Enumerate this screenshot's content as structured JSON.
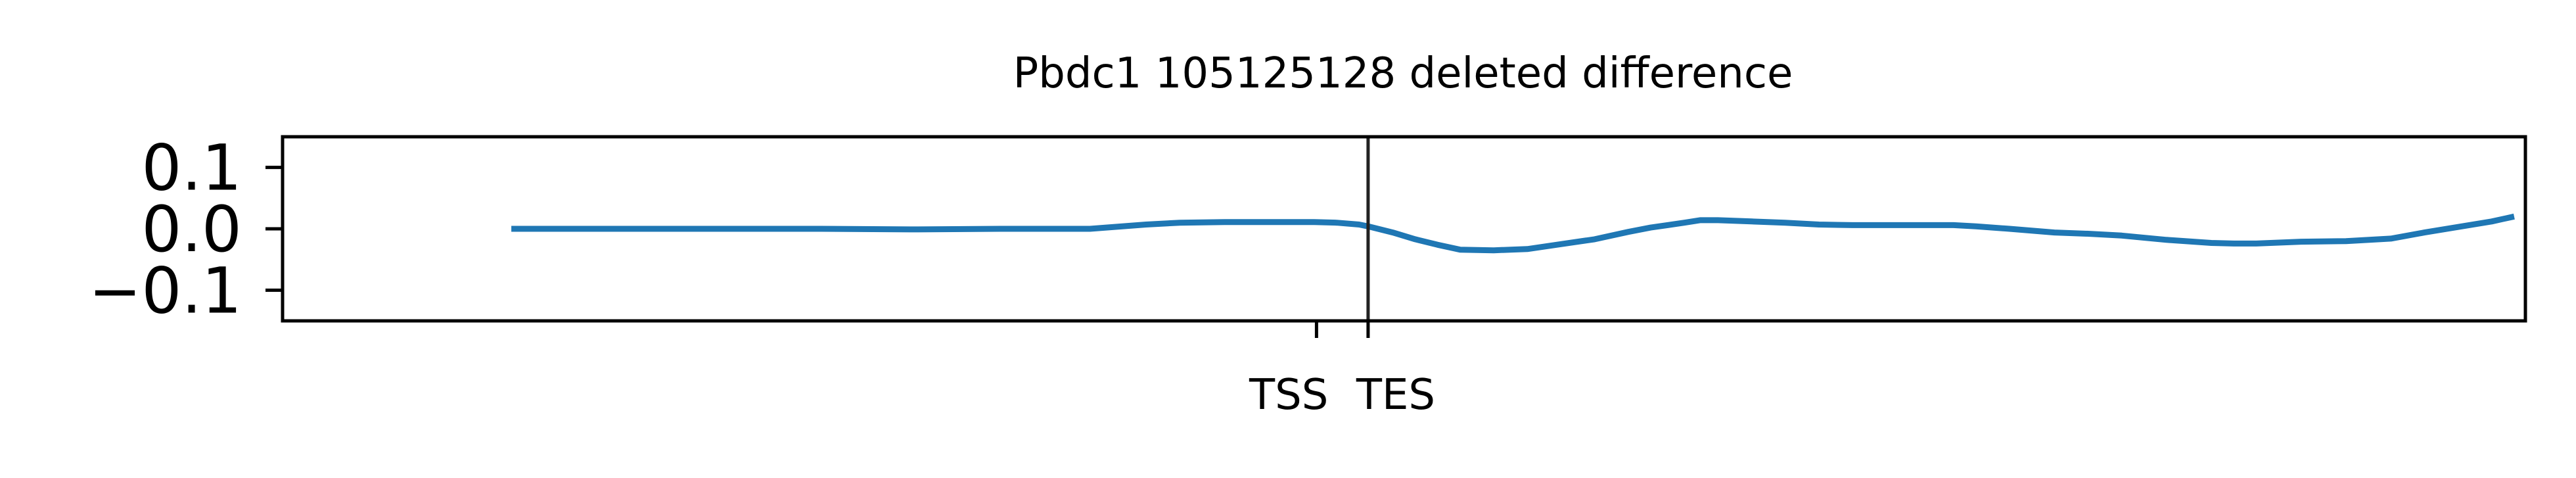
{
  "chart_data": {
    "type": "line",
    "title": "Pbdc1 105125128 deleted difference",
    "xlabel": "",
    "ylabel": "",
    "ylim": [
      -0.15,
      0.15
    ],
    "yticks": [
      {
        "value": 0.1,
        "label": "0.1"
      },
      {
        "value": 0.0,
        "label": "0.0"
      },
      {
        "value": -0.1,
        "label": "−0.1"
      }
    ],
    "xlim": [
      0,
      1000
    ],
    "xticks": [
      {
        "value": 461,
        "label": "TSS"
      },
      {
        "value": 484,
        "label": "TES"
      }
    ],
    "vline": {
      "x": 484
    },
    "grid": false,
    "legend": "none",
    "colors": {
      "line": "#1f77b4",
      "axes": "#000000",
      "vline": "#222222"
    },
    "series": [
      {
        "x": [
          102,
          130,
          160,
          200,
          240,
          280,
          320,
          352,
          360,
          385,
          400,
          420,
          440,
          460,
          470,
          480,
          484,
          495,
          505,
          515,
          525,
          540,
          555,
          570,
          585,
          600,
          610,
          625,
          632,
          640,
          655,
          670,
          685,
          700,
          715,
          730,
          745,
          755,
          770,
          790,
          805,
          820,
          840,
          860,
          870,
          880,
          900,
          920,
          940,
          955,
          970,
          985,
          995
        ],
        "y": [
          0.0,
          0.0,
          0.0,
          0.0,
          0.0,
          -0.001,
          0.0,
          0.0,
          0.0,
          0.007,
          0.01,
          0.011,
          0.011,
          0.011,
          0.01,
          0.007,
          0.004,
          -0.006,
          -0.017,
          -0.026,
          -0.034,
          -0.035,
          -0.033,
          -0.025,
          -0.017,
          -0.005,
          0.002,
          0.01,
          0.014,
          0.014,
          0.012,
          0.01,
          0.007,
          0.006,
          0.006,
          0.006,
          0.006,
          0.004,
          0.0,
          -0.006,
          -0.008,
          -0.011,
          -0.018,
          -0.023,
          -0.024,
          -0.024,
          -0.021,
          -0.02,
          -0.016,
          -0.006,
          0.003,
          0.012,
          0.02
        ]
      }
    ]
  }
}
